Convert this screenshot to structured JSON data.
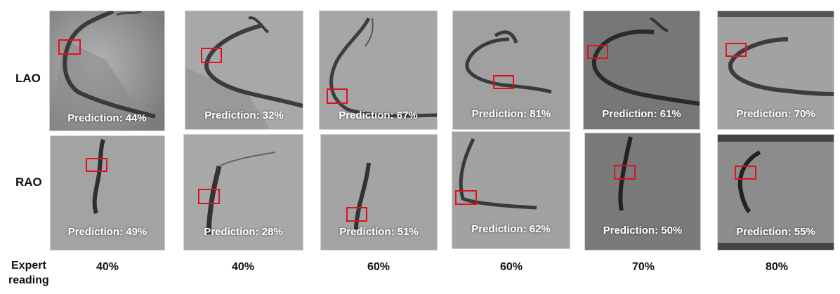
{
  "rows": [
    {
      "label": "LAO"
    },
    {
      "label": "RAO"
    }
  ],
  "lao_predictions": [
    "Prediction: 44%",
    "Prediction: 32%",
    "Prediction: 67%",
    "Prediction: 81%",
    "Prediction: 61%",
    "Prediction: 70%"
  ],
  "rao_predictions": [
    "Prediction: 49%",
    "Prediction: 28%",
    "Prediction: 51%",
    "Prediction: 62%",
    "Prediction: 50%",
    "Prediction: 55%"
  ],
  "expert": {
    "label_line1": "Expert",
    "label_line2": "reading",
    "values": [
      "40%",
      "40%",
      "60%",
      "60%",
      "70%",
      "80%"
    ]
  },
  "colors": {
    "roi_box": "#e0121b",
    "prediction_text": "#ffffff"
  }
}
